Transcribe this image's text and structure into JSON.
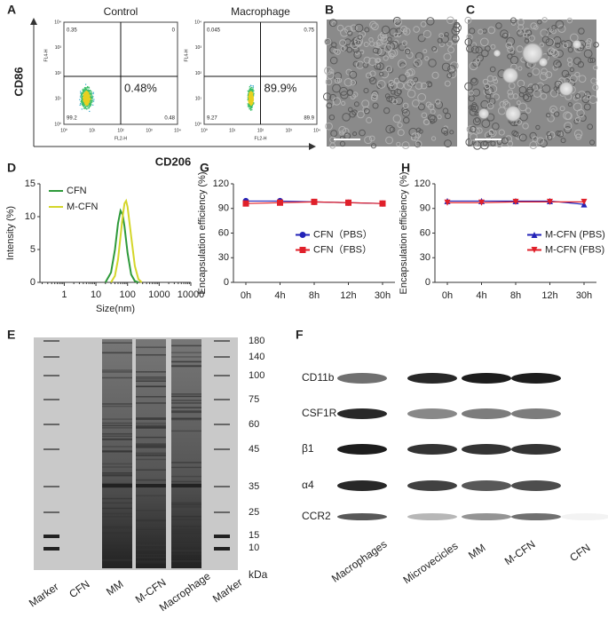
{
  "panels": {
    "A": {
      "label": "A",
      "titles": [
        "Control",
        "Macrophage"
      ],
      "y_label": "CD86",
      "x_label": "CD206",
      "tick_labels": [
        "10⁰",
        "10¹",
        "10²",
        "10³",
        "10⁴"
      ],
      "plots": [
        {
          "y_axis": "FL4-H",
          "x_axis": "FL2-H",
          "quadrants": [
            "0.35",
            "0",
            "99.2",
            "0.48"
          ],
          "highlight": "0.48%"
        },
        {
          "y_axis": "FL4-H",
          "x_axis": "FL2-H",
          "quadrants": [
            "0.045",
            "0.75",
            "9.27",
            "89.9"
          ],
          "highlight": "89.9%"
        }
      ]
    },
    "B": {
      "label": "B"
    },
    "C": {
      "label": "C"
    },
    "E": {
      "label": "E",
      "markers": [
        "180",
        "140",
        "100",
        "75",
        "60",
        "45",
        "35",
        "25",
        "15",
        "10"
      ],
      "unit": "kDa",
      "lanes": [
        "Marker",
        "CFN",
        "MM",
        "M-CFN",
        "Macrophage",
        "Marker"
      ]
    },
    "F": {
      "label": "F",
      "rows": [
        "CD11b",
        "CSF1R",
        "β1",
        "α4",
        "CCR2"
      ],
      "columns": [
        "Macrophages",
        "Microvecicles",
        "MM",
        "M-CFN",
        "CFN"
      ]
    }
  },
  "chart_data": [
    {
      "type": "line",
      "label": "D",
      "x_label": "Size(nm)",
      "y_label": "Intensity (%)",
      "log_x": true,
      "xlim": [
        0.17,
        10000
      ],
      "xticks": [
        1,
        10,
        100,
        1000,
        10000
      ],
      "ylim": [
        0,
        15
      ],
      "yticks": [
        0,
        5,
        10,
        15
      ],
      "legend": "upper left",
      "series": [
        {
          "name": "CFN",
          "color": "#2e9a3a",
          "x": [
            20,
            30,
            40,
            50,
            60,
            70,
            80,
            100,
            130,
            170,
            220
          ],
          "values": [
            0,
            1.5,
            5,
            9,
            10.9,
            10.3,
            8.5,
            4.5,
            1.2,
            0.2,
            0
          ]
        },
        {
          "name": "M-CFN",
          "color": "#d4d62a",
          "x": [
            30,
            40,
            50,
            60,
            70,
            80,
            90,
            100,
            130,
            170,
            220,
            280
          ],
          "values": [
            0,
            1,
            3.5,
            7,
            10,
            12,
            12.4,
            11.5,
            7,
            2.5,
            0.5,
            0
          ]
        }
      ]
    },
    {
      "type": "line",
      "label": "G",
      "y_label": "Encapsulation efficiency (%)",
      "categories": [
        "0h",
        "4h",
        "8h",
        "12h",
        "30h"
      ],
      "ylim": [
        0,
        120
      ],
      "yticks": [
        0,
        30,
        60,
        90,
        120
      ],
      "legend": "center right",
      "series": [
        {
          "name": "CFN（PBS）",
          "color": "#2323b8",
          "marker": "circle",
          "values": [
            99,
            99,
            98,
            97,
            96
          ]
        },
        {
          "name": "CFN（FBS）",
          "color": "#e0202a",
          "marker": "square",
          "values": [
            96,
            97,
            98,
            97,
            96
          ]
        }
      ]
    },
    {
      "type": "line",
      "label": "H",
      "y_label": "Encapsulation efficiency (%)",
      "categories": [
        "0h",
        "4h",
        "8h",
        "12h",
        "30h"
      ],
      "ylim": [
        0,
        120
      ],
      "yticks": [
        0,
        30,
        60,
        90,
        120
      ],
      "legend": "center right",
      "series": [
        {
          "name": "M-CFN (PBS)",
          "color": "#2323b8",
          "marker": "triangle",
          "values": [
            99,
            99,
            99,
            99,
            95
          ]
        },
        {
          "name": "M-CFN (FBS)",
          "color": "#e0202a",
          "marker": "triangle-down",
          "values": [
            97,
            97,
            98,
            98,
            98
          ]
        }
      ]
    }
  ]
}
